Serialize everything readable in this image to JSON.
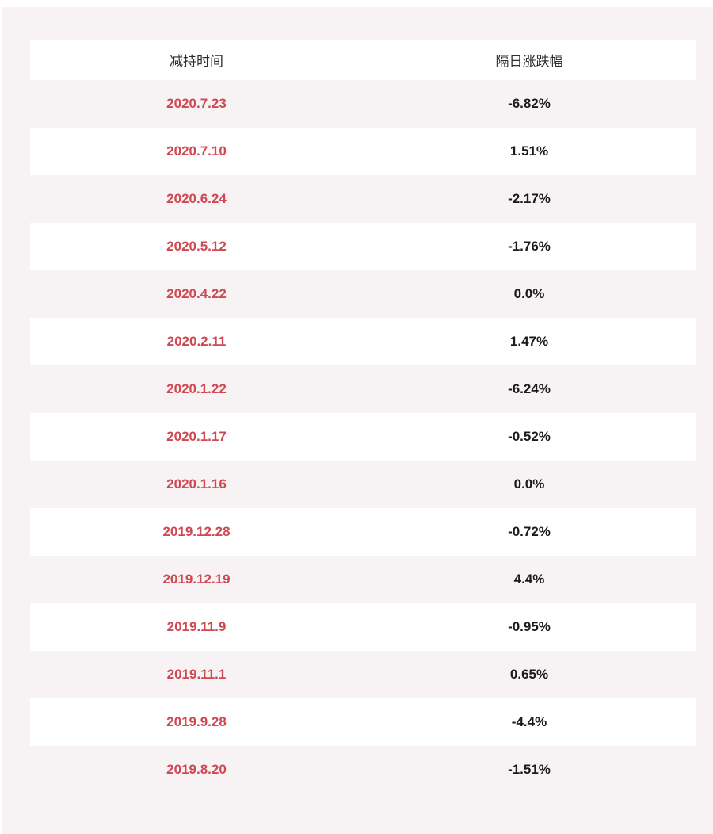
{
  "colors": {
    "page_background": "#f7f2f3",
    "row_alt_background": "#ffffff",
    "date_text": "#cf4852",
    "value_text": "#1b1b1b",
    "header_text": "#2e2e2e"
  },
  "chart_data": {
    "type": "table",
    "title": "",
    "columns": [
      "减持时间",
      "隔日涨跌幅"
    ],
    "rows": [
      {
        "date": "2020.7.23",
        "change": "-6.82%"
      },
      {
        "date": "2020.7.10",
        "change": "1.51%"
      },
      {
        "date": "2020.6.24",
        "change": "-2.17%"
      },
      {
        "date": "2020.5.12",
        "change": "-1.76%"
      },
      {
        "date": "2020.4.22",
        "change": "0.0%"
      },
      {
        "date": "2020.2.11",
        "change": "1.47%"
      },
      {
        "date": "2020.1.22",
        "change": "-6.24%"
      },
      {
        "date": "2020.1.17",
        "change": "-0.52%"
      },
      {
        "date": "2020.1.16",
        "change": "0.0%"
      },
      {
        "date": "2019.12.28",
        "change": "-0.72%"
      },
      {
        "date": "2019.12.19",
        "change": "4.4%"
      },
      {
        "date": "2019.11.9",
        "change": "-0.95%"
      },
      {
        "date": "2019.11.1",
        "change": "0.65%"
      },
      {
        "date": "2019.9.28",
        "change": "-4.4%"
      },
      {
        "date": "2019.8.20",
        "change": "-1.51%"
      }
    ]
  }
}
